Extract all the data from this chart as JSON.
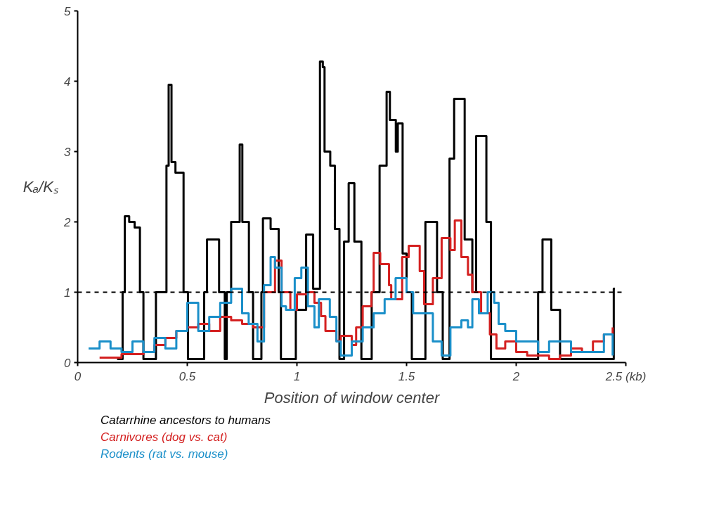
{
  "chart_data": {
    "type": "step",
    "xlabel": "Position of window center",
    "ylabel": "Kₐ/Kₛ",
    "xlim": [
      0,
      2.5
    ],
    "ylim": [
      0,
      5
    ],
    "xticks": [
      0,
      0.5,
      1,
      1.5,
      2,
      {
        "value": 2.5,
        "label": "2.5 (kb)"
      }
    ],
    "yticks": [
      0,
      1,
      2,
      3,
      4,
      5
    ],
    "grid": false,
    "legend": "bottom",
    "line_style": "solid",
    "marker": "none",
    "ref_lines": [
      {
        "axis": "y",
        "value": 1,
        "color": "#000000",
        "line_style": "dashed"
      }
    ],
    "series": [
      {
        "name": "Catarrhine ancestors to humans",
        "color": "#000000",
        "x": [
          0.18,
          0.205,
          0.215,
          0.235,
          0.26,
          0.284,
          0.3,
          0.357,
          0.405,
          0.415,
          0.428,
          0.446,
          0.483,
          0.503,
          0.577,
          0.59,
          0.645,
          0.671,
          0.68,
          0.7,
          0.739,
          0.751,
          0.781,
          0.8,
          0.838,
          0.845,
          0.88,
          0.917,
          0.927,
          0.995,
          1.042,
          1.074,
          1.105,
          1.118,
          1.126,
          1.152,
          1.173,
          1.194,
          1.215,
          1.236,
          1.262,
          1.294,
          1.341,
          1.377,
          1.409,
          1.424,
          1.451,
          1.46,
          1.482,
          1.5,
          1.524,
          1.586,
          1.639,
          1.665,
          1.696,
          1.717,
          1.765,
          1.8,
          1.817,
          1.864,
          1.885,
          2.1,
          2.12,
          2.16,
          2.2,
          2.445,
          2.45
        ],
        "values": [
          0.05,
          1.0,
          2.08,
          2.0,
          1.92,
          1.0,
          0.05,
          1.0,
          2.8,
          3.95,
          2.85,
          2.7,
          1.0,
          0.05,
          1.0,
          1.75,
          1.0,
          0.05,
          1.0,
          2.0,
          3.1,
          2.0,
          1.0,
          0.05,
          1.0,
          2.05,
          1.9,
          1.0,
          0.05,
          0.75,
          1.82,
          1.05,
          4.28,
          4.2,
          3.0,
          2.8,
          1.9,
          0.05,
          1.72,
          2.55,
          1.72,
          0.05,
          1.0,
          2.8,
          3.85,
          3.45,
          3.0,
          3.4,
          1.55,
          1.0,
          0.05,
          2.0,
          1.0,
          0.05,
          2.9,
          3.75,
          1.75,
          1.0,
          3.22,
          2.0,
          0.05,
          1.0,
          1.75,
          0.75,
          0.05,
          1.05,
          1.05
        ]
      },
      {
        "name": "Carnivores (dog vs. cat)",
        "color": "#d42020",
        "x": [
          0.1,
          0.2,
          0.3,
          0.35,
          0.4,
          0.45,
          0.5,
          0.55,
          0.6,
          0.65,
          0.7,
          0.75,
          0.8,
          0.85,
          0.9,
          0.93,
          0.97,
          1.0,
          1.05,
          1.08,
          1.11,
          1.13,
          1.18,
          1.2,
          1.25,
          1.27,
          1.3,
          1.34,
          1.35,
          1.38,
          1.42,
          1.43,
          1.48,
          1.51,
          1.56,
          1.58,
          1.62,
          1.66,
          1.7,
          1.72,
          1.75,
          1.78,
          1.8,
          1.84,
          1.88,
          1.91,
          1.95,
          2.0,
          2.05,
          2.1,
          2.15,
          2.2,
          2.25,
          2.3,
          2.35,
          2.4,
          2.44
        ],
        "values": [
          0.07,
          0.12,
          0.15,
          0.25,
          0.35,
          0.45,
          0.5,
          0.55,
          0.45,
          0.65,
          0.6,
          0.55,
          0.5,
          1.0,
          1.45,
          1.0,
          0.75,
          0.97,
          1.0,
          0.85,
          0.66,
          0.45,
          0.31,
          0.38,
          0.25,
          0.5,
          0.8,
          1.0,
          1.56,
          1.4,
          1.1,
          0.9,
          1.5,
          1.66,
          1.3,
          0.83,
          1.2,
          1.77,
          1.6,
          2.02,
          1.5,
          1.25,
          1.0,
          0.7,
          0.4,
          0.2,
          0.3,
          0.15,
          0.1,
          0.1,
          0.05,
          0.1,
          0.2,
          0.15,
          0.3,
          0.4,
          0.5
        ]
      },
      {
        "name": "Rodents (rat vs. mouse)",
        "color": "#1a8fc9",
        "x": [
          0.05,
          0.1,
          0.15,
          0.2,
          0.25,
          0.3,
          0.35,
          0.4,
          0.45,
          0.5,
          0.55,
          0.6,
          0.65,
          0.7,
          0.75,
          0.78,
          0.82,
          0.85,
          0.88,
          0.9,
          0.93,
          0.95,
          0.99,
          1.02,
          1.05,
          1.08,
          1.1,
          1.15,
          1.18,
          1.2,
          1.25,
          1.3,
          1.35,
          1.4,
          1.45,
          1.5,
          1.53,
          1.58,
          1.62,
          1.66,
          1.7,
          1.75,
          1.78,
          1.8,
          1.83,
          1.87,
          1.9,
          1.92,
          1.95,
          2.0,
          2.05,
          2.1,
          2.15,
          2.2,
          2.25,
          2.3,
          2.35,
          2.4,
          2.44
        ],
        "values": [
          0.2,
          0.3,
          0.2,
          0.15,
          0.3,
          0.15,
          0.35,
          0.2,
          0.45,
          0.85,
          0.45,
          0.65,
          0.85,
          1.05,
          0.7,
          0.55,
          0.3,
          1.1,
          1.5,
          1.35,
          0.8,
          0.75,
          1.2,
          1.35,
          0.8,
          0.5,
          0.9,
          0.65,
          0.3,
          0.1,
          0.3,
          0.5,
          0.7,
          0.9,
          1.2,
          1.0,
          0.7,
          0.7,
          0.3,
          0.1,
          0.5,
          0.6,
          0.5,
          0.9,
          0.7,
          1.0,
          0.85,
          0.55,
          0.45,
          0.3,
          0.3,
          0.15,
          0.3,
          0.3,
          0.15,
          0.15,
          0.15,
          0.4,
          0.1
        ]
      }
    ]
  }
}
